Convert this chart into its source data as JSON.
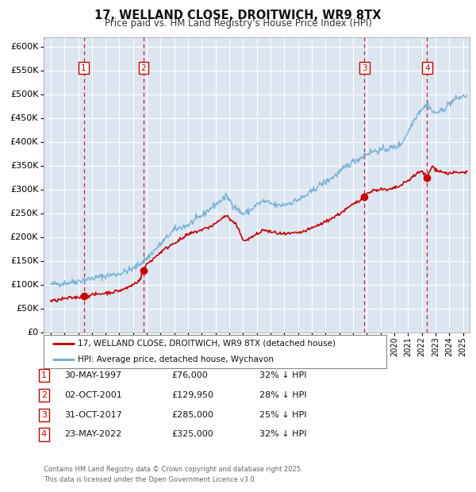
{
  "title_line1": "17, WELLAND CLOSE, DROITWICH, WR9 8TX",
  "title_line2": "Price paid vs. HM Land Registry's House Price Index (HPI)",
  "plot_bg_color": "#dce6f1",
  "grid_color": "#ffffff",
  "hpi_color": "#6baed6",
  "price_color": "#cc0000",
  "ylim": [
    0,
    620000
  ],
  "yticks": [
    0,
    50000,
    100000,
    150000,
    200000,
    250000,
    300000,
    350000,
    400000,
    450000,
    500000,
    550000,
    600000
  ],
  "ytick_labels": [
    "£0",
    "£50K",
    "£100K",
    "£150K",
    "£200K",
    "£250K",
    "£300K",
    "£350K",
    "£400K",
    "£450K",
    "£500K",
    "£550K",
    "£600K"
  ],
  "transactions": [
    {
      "num": 1,
      "date": "30-MAY-1997",
      "date_x": 1997.41,
      "price": 76000,
      "pct": "32%",
      "dir": "↓"
    },
    {
      "num": 2,
      "date": "02-OCT-2001",
      "date_x": 2001.75,
      "price": 129950,
      "pct": "28%",
      "dir": "↓"
    },
    {
      "num": 3,
      "date": "31-OCT-2017",
      "date_x": 2017.83,
      "price": 285000,
      "pct": "25%",
      "dir": "↓"
    },
    {
      "num": 4,
      "date": "23-MAY-2022",
      "date_x": 2022.39,
      "price": 325000,
      "pct": "32%",
      "dir": "↓"
    }
  ],
  "legend_line1": "17, WELLAND CLOSE, DROITWICH, WR9 8TX (detached house)",
  "legend_line2": "HPI: Average price, detached house, Wychavon",
  "footer_line1": "Contains HM Land Registry data © Crown copyright and database right 2025.",
  "footer_line2": "This data is licensed under the Open Government Licence v3.0.",
  "xlim_start": 1994.5,
  "xlim_end": 2025.5,
  "hpi_anchors": [
    [
      1995.0,
      100000
    ],
    [
      1996.0,
      103000
    ],
    [
      1997.0,
      107000
    ],
    [
      1998.0,
      113000
    ],
    [
      1999.0,
      118000
    ],
    [
      2000.0,
      123000
    ],
    [
      2001.0,
      133000
    ],
    [
      2002.0,
      155000
    ],
    [
      2003.0,
      185000
    ],
    [
      2004.0,
      215000
    ],
    [
      2005.0,
      225000
    ],
    [
      2006.0,
      245000
    ],
    [
      2007.0,
      268000
    ],
    [
      2007.8,
      285000
    ],
    [
      2008.5,
      260000
    ],
    [
      2009.0,
      248000
    ],
    [
      2009.5,
      255000
    ],
    [
      2010.0,
      268000
    ],
    [
      2010.5,
      275000
    ],
    [
      2011.0,
      270000
    ],
    [
      2011.5,
      265000
    ],
    [
      2012.0,
      268000
    ],
    [
      2012.5,
      272000
    ],
    [
      2013.0,
      278000
    ],
    [
      2013.5,
      285000
    ],
    [
      2014.0,
      295000
    ],
    [
      2014.5,
      308000
    ],
    [
      2015.0,
      315000
    ],
    [
      2015.5,
      325000
    ],
    [
      2016.0,
      335000
    ],
    [
      2016.5,
      348000
    ],
    [
      2017.0,
      358000
    ],
    [
      2017.5,
      365000
    ],
    [
      2018.0,
      375000
    ],
    [
      2018.5,
      380000
    ],
    [
      2019.0,
      382000
    ],
    [
      2019.5,
      385000
    ],
    [
      2020.0,
      388000
    ],
    [
      2020.5,
      395000
    ],
    [
      2021.0,
      420000
    ],
    [
      2021.5,
      450000
    ],
    [
      2022.0,
      470000
    ],
    [
      2022.5,
      478000
    ],
    [
      2022.8,
      462000
    ],
    [
      2023.0,
      460000
    ],
    [
      2023.5,
      465000
    ],
    [
      2024.0,
      480000
    ],
    [
      2024.5,
      490000
    ],
    [
      2025.0,
      495000
    ],
    [
      2025.3,
      497000
    ]
  ],
  "price_anchors": [
    [
      1995.0,
      65000
    ],
    [
      1995.5,
      67000
    ],
    [
      1996.0,
      70000
    ],
    [
      1996.5,
      72000
    ],
    [
      1997.0,
      73000
    ],
    [
      1997.41,
      76000
    ],
    [
      1997.8,
      77000
    ],
    [
      1998.0,
      78000
    ],
    [
      1998.5,
      80000
    ],
    [
      1999.0,
      82000
    ],
    [
      1999.5,
      84000
    ],
    [
      2000.0,
      87000
    ],
    [
      2000.5,
      92000
    ],
    [
      2001.0,
      100000
    ],
    [
      2001.5,
      110000
    ],
    [
      2001.75,
      129950
    ],
    [
      2002.0,
      143000
    ],
    [
      2002.5,
      155000
    ],
    [
      2003.0,
      168000
    ],
    [
      2003.5,
      178000
    ],
    [
      2004.0,
      188000
    ],
    [
      2004.5,
      195000
    ],
    [
      2005.0,
      205000
    ],
    [
      2005.5,
      210000
    ],
    [
      2006.0,
      215000
    ],
    [
      2006.5,
      220000
    ],
    [
      2007.0,
      228000
    ],
    [
      2007.5,
      240000
    ],
    [
      2007.8,
      245000
    ],
    [
      2008.0,
      238000
    ],
    [
      2008.5,
      225000
    ],
    [
      2009.0,
      195000
    ],
    [
      2009.3,
      192000
    ],
    [
      2009.5,
      198000
    ],
    [
      2010.0,
      205000
    ],
    [
      2010.5,
      215000
    ],
    [
      2011.0,
      210000
    ],
    [
      2011.5,
      208000
    ],
    [
      2012.0,
      205000
    ],
    [
      2012.5,
      207000
    ],
    [
      2013.0,
      208000
    ],
    [
      2013.5,
      212000
    ],
    [
      2014.0,
      218000
    ],
    [
      2014.5,
      225000
    ],
    [
      2015.0,
      232000
    ],
    [
      2015.5,
      240000
    ],
    [
      2016.0,
      248000
    ],
    [
      2016.5,
      258000
    ],
    [
      2017.0,
      268000
    ],
    [
      2017.5,
      276000
    ],
    [
      2017.83,
      285000
    ],
    [
      2018.0,
      290000
    ],
    [
      2018.5,
      298000
    ],
    [
      2019.0,
      300000
    ],
    [
      2019.5,
      298000
    ],
    [
      2020.0,
      302000
    ],
    [
      2020.5,
      308000
    ],
    [
      2021.0,
      318000
    ],
    [
      2021.5,
      330000
    ],
    [
      2022.0,
      338000
    ],
    [
      2022.39,
      325000
    ],
    [
      2022.6,
      340000
    ],
    [
      2022.8,
      348000
    ],
    [
      2023.0,
      342000
    ],
    [
      2023.5,
      336000
    ],
    [
      2024.0,
      333000
    ],
    [
      2024.5,
      335000
    ],
    [
      2025.0,
      335000
    ],
    [
      2025.3,
      337000
    ]
  ]
}
